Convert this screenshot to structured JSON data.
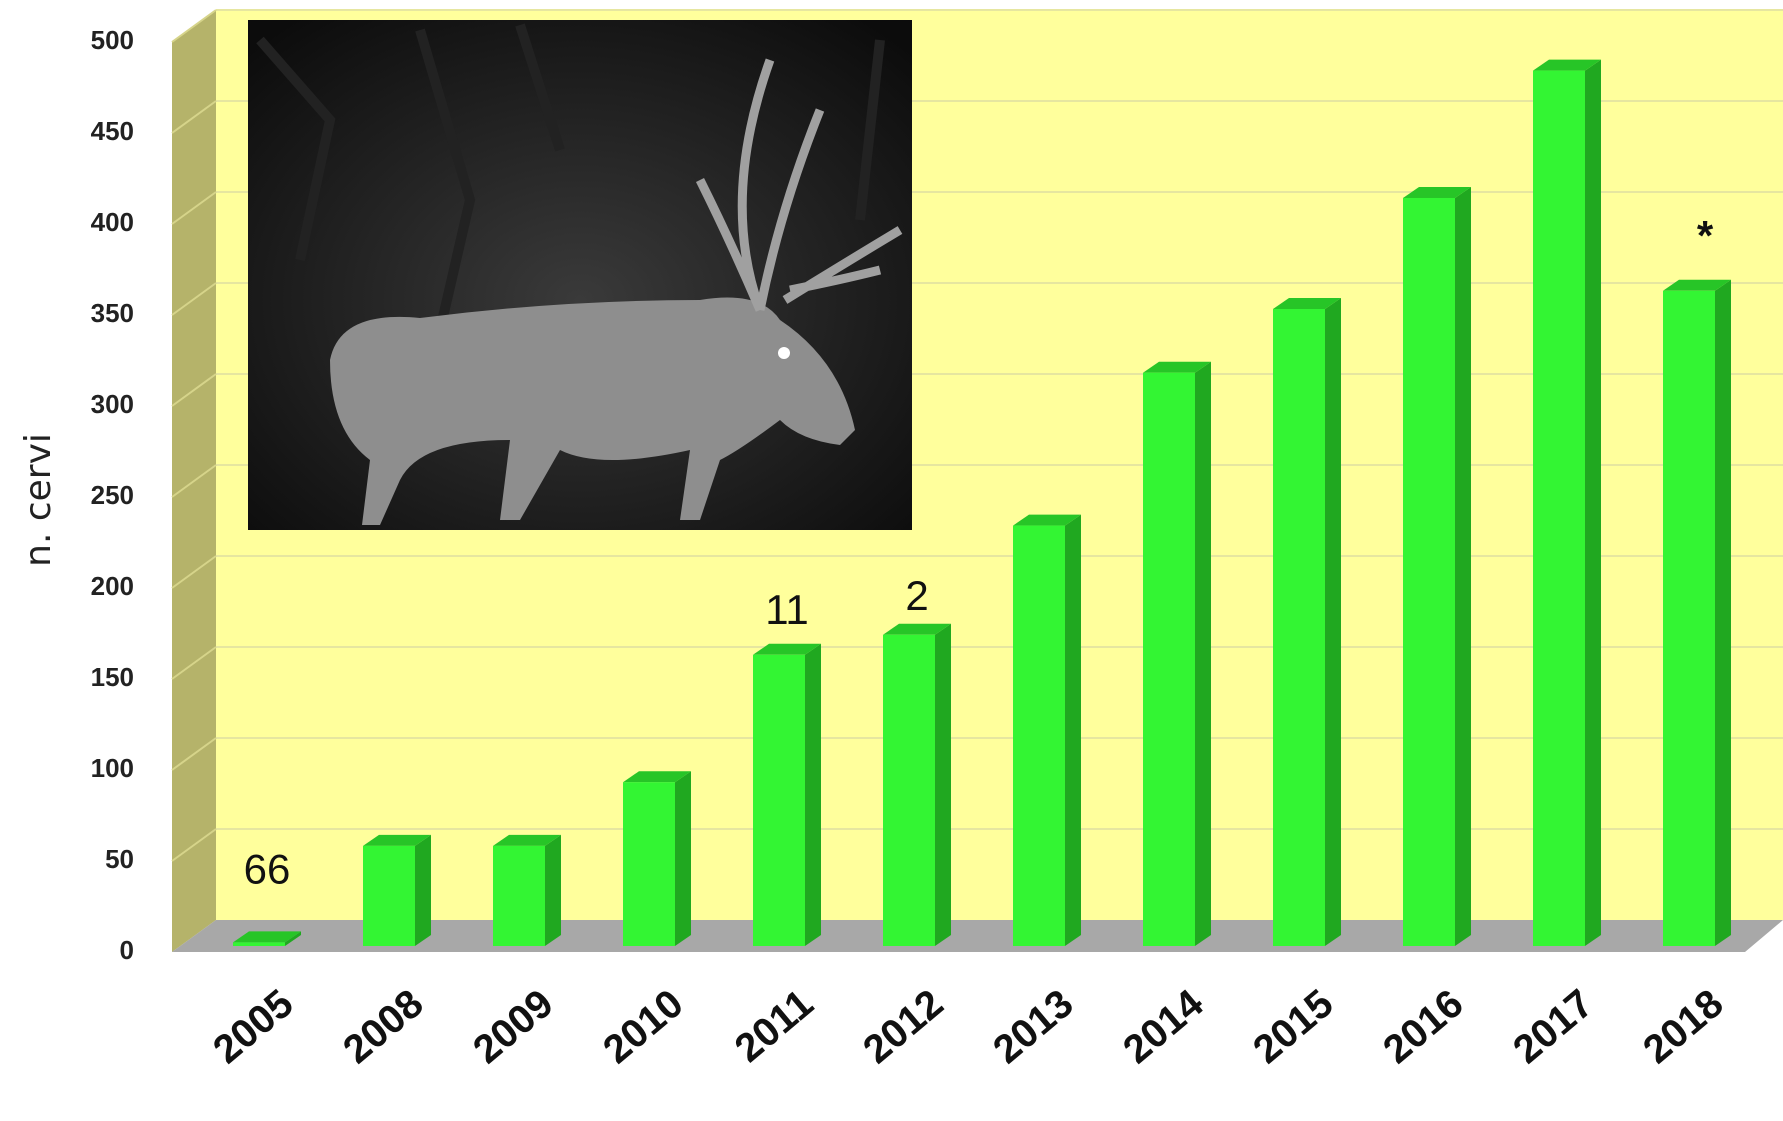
{
  "chart_data": {
    "type": "bar3d",
    "y_label": "n. cervi",
    "categories": [
      "2005",
      "2008",
      "2009",
      "2010",
      "2011",
      "2012",
      "2013",
      "2014",
      "2015",
      "2016",
      "2017",
      "2018"
    ],
    "values": [
      2,
      55,
      55,
      90,
      160,
      171,
      231,
      315,
      350,
      411,
      481,
      360
    ],
    "color": "#33f533",
    "ylim": [
      0,
      500
    ],
    "yticks": [
      0,
      50,
      100,
      150,
      200,
      250,
      300,
      350,
      400,
      450,
      500
    ],
    "grid": true,
    "annotations": [
      {
        "text": "66",
        "category": 0
      },
      {
        "text": "11",
        "category": 4
      },
      {
        "text": "2",
        "category": 5
      },
      {
        "text": "*",
        "category": 11
      }
    ]
  }
}
